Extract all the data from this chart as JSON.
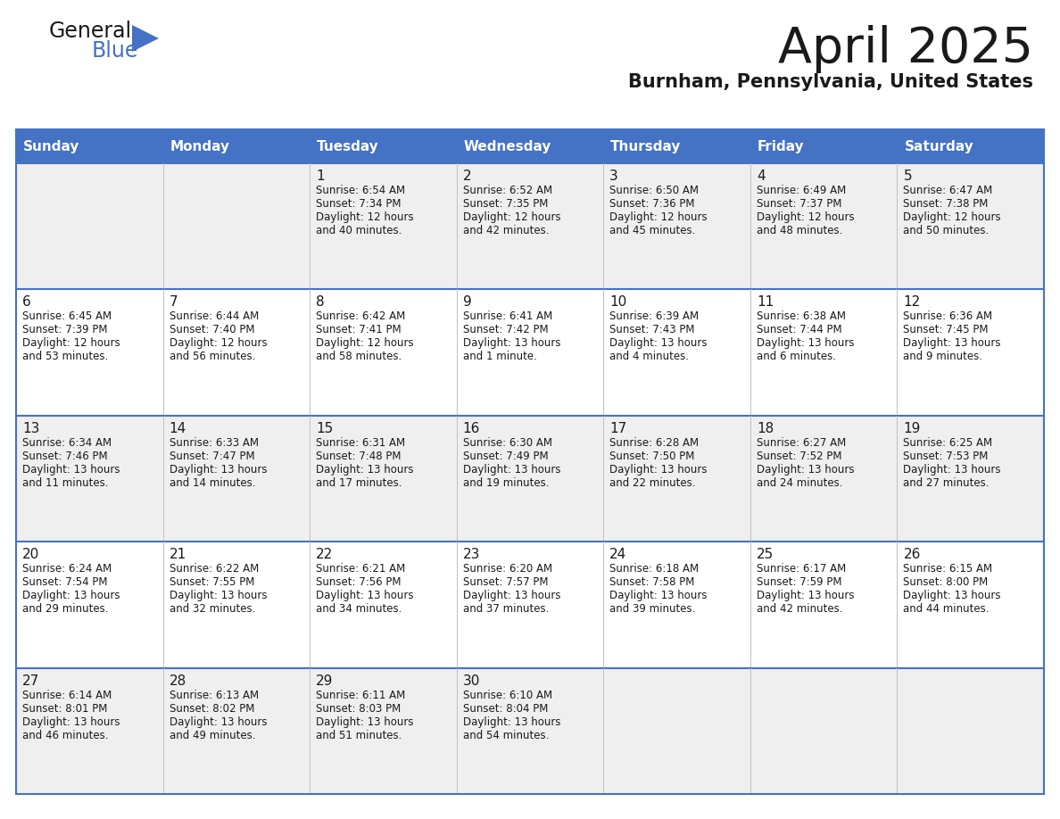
{
  "title": "April 2025",
  "subtitle": "Burnham, Pennsylvania, United States",
  "header_bg_color": "#4472C4",
  "header_text_color": "#FFFFFF",
  "odd_row_bg": "#EFEFEF",
  "even_row_bg": "#FFFFFF",
  "border_color": "#4472C4",
  "cell_border_color": "#9DB8D9",
  "title_color": "#1a1a1a",
  "subtitle_color": "#1a1a1a",
  "text_color": "#1a1a1a",
  "day_names": [
    "Sunday",
    "Monday",
    "Tuesday",
    "Wednesday",
    "Thursday",
    "Friday",
    "Saturday"
  ],
  "weeks": [
    [
      {
        "day": "",
        "sunrise": "",
        "sunset": "",
        "daylight": ""
      },
      {
        "day": "",
        "sunrise": "",
        "sunset": "",
        "daylight": ""
      },
      {
        "day": "1",
        "sunrise": "Sunrise: 6:54 AM",
        "sunset": "Sunset: 7:34 PM",
        "daylight": "Daylight: 12 hours\nand 40 minutes."
      },
      {
        "day": "2",
        "sunrise": "Sunrise: 6:52 AM",
        "sunset": "Sunset: 7:35 PM",
        "daylight": "Daylight: 12 hours\nand 42 minutes."
      },
      {
        "day": "3",
        "sunrise": "Sunrise: 6:50 AM",
        "sunset": "Sunset: 7:36 PM",
        "daylight": "Daylight: 12 hours\nand 45 minutes."
      },
      {
        "day": "4",
        "sunrise": "Sunrise: 6:49 AM",
        "sunset": "Sunset: 7:37 PM",
        "daylight": "Daylight: 12 hours\nand 48 minutes."
      },
      {
        "day": "5",
        "sunrise": "Sunrise: 6:47 AM",
        "sunset": "Sunset: 7:38 PM",
        "daylight": "Daylight: 12 hours\nand 50 minutes."
      }
    ],
    [
      {
        "day": "6",
        "sunrise": "Sunrise: 6:45 AM",
        "sunset": "Sunset: 7:39 PM",
        "daylight": "Daylight: 12 hours\nand 53 minutes."
      },
      {
        "day": "7",
        "sunrise": "Sunrise: 6:44 AM",
        "sunset": "Sunset: 7:40 PM",
        "daylight": "Daylight: 12 hours\nand 56 minutes."
      },
      {
        "day": "8",
        "sunrise": "Sunrise: 6:42 AM",
        "sunset": "Sunset: 7:41 PM",
        "daylight": "Daylight: 12 hours\nand 58 minutes."
      },
      {
        "day": "9",
        "sunrise": "Sunrise: 6:41 AM",
        "sunset": "Sunset: 7:42 PM",
        "daylight": "Daylight: 13 hours\nand 1 minute."
      },
      {
        "day": "10",
        "sunrise": "Sunrise: 6:39 AM",
        "sunset": "Sunset: 7:43 PM",
        "daylight": "Daylight: 13 hours\nand 4 minutes."
      },
      {
        "day": "11",
        "sunrise": "Sunrise: 6:38 AM",
        "sunset": "Sunset: 7:44 PM",
        "daylight": "Daylight: 13 hours\nand 6 minutes."
      },
      {
        "day": "12",
        "sunrise": "Sunrise: 6:36 AM",
        "sunset": "Sunset: 7:45 PM",
        "daylight": "Daylight: 13 hours\nand 9 minutes."
      }
    ],
    [
      {
        "day": "13",
        "sunrise": "Sunrise: 6:34 AM",
        "sunset": "Sunset: 7:46 PM",
        "daylight": "Daylight: 13 hours\nand 11 minutes."
      },
      {
        "day": "14",
        "sunrise": "Sunrise: 6:33 AM",
        "sunset": "Sunset: 7:47 PM",
        "daylight": "Daylight: 13 hours\nand 14 minutes."
      },
      {
        "day": "15",
        "sunrise": "Sunrise: 6:31 AM",
        "sunset": "Sunset: 7:48 PM",
        "daylight": "Daylight: 13 hours\nand 17 minutes."
      },
      {
        "day": "16",
        "sunrise": "Sunrise: 6:30 AM",
        "sunset": "Sunset: 7:49 PM",
        "daylight": "Daylight: 13 hours\nand 19 minutes."
      },
      {
        "day": "17",
        "sunrise": "Sunrise: 6:28 AM",
        "sunset": "Sunset: 7:50 PM",
        "daylight": "Daylight: 13 hours\nand 22 minutes."
      },
      {
        "day": "18",
        "sunrise": "Sunrise: 6:27 AM",
        "sunset": "Sunset: 7:52 PM",
        "daylight": "Daylight: 13 hours\nand 24 minutes."
      },
      {
        "day": "19",
        "sunrise": "Sunrise: 6:25 AM",
        "sunset": "Sunset: 7:53 PM",
        "daylight": "Daylight: 13 hours\nand 27 minutes."
      }
    ],
    [
      {
        "day": "20",
        "sunrise": "Sunrise: 6:24 AM",
        "sunset": "Sunset: 7:54 PM",
        "daylight": "Daylight: 13 hours\nand 29 minutes."
      },
      {
        "day": "21",
        "sunrise": "Sunrise: 6:22 AM",
        "sunset": "Sunset: 7:55 PM",
        "daylight": "Daylight: 13 hours\nand 32 minutes."
      },
      {
        "day": "22",
        "sunrise": "Sunrise: 6:21 AM",
        "sunset": "Sunset: 7:56 PM",
        "daylight": "Daylight: 13 hours\nand 34 minutes."
      },
      {
        "day": "23",
        "sunrise": "Sunrise: 6:20 AM",
        "sunset": "Sunset: 7:57 PM",
        "daylight": "Daylight: 13 hours\nand 37 minutes."
      },
      {
        "day": "24",
        "sunrise": "Sunrise: 6:18 AM",
        "sunset": "Sunset: 7:58 PM",
        "daylight": "Daylight: 13 hours\nand 39 minutes."
      },
      {
        "day": "25",
        "sunrise": "Sunrise: 6:17 AM",
        "sunset": "Sunset: 7:59 PM",
        "daylight": "Daylight: 13 hours\nand 42 minutes."
      },
      {
        "day": "26",
        "sunrise": "Sunrise: 6:15 AM",
        "sunset": "Sunset: 8:00 PM",
        "daylight": "Daylight: 13 hours\nand 44 minutes."
      }
    ],
    [
      {
        "day": "27",
        "sunrise": "Sunrise: 6:14 AM",
        "sunset": "Sunset: 8:01 PM",
        "daylight": "Daylight: 13 hours\nand 46 minutes."
      },
      {
        "day": "28",
        "sunrise": "Sunrise: 6:13 AM",
        "sunset": "Sunset: 8:02 PM",
        "daylight": "Daylight: 13 hours\nand 49 minutes."
      },
      {
        "day": "29",
        "sunrise": "Sunrise: 6:11 AM",
        "sunset": "Sunset: 8:03 PM",
        "daylight": "Daylight: 13 hours\nand 51 minutes."
      },
      {
        "day": "30",
        "sunrise": "Sunrise: 6:10 AM",
        "sunset": "Sunset: 8:04 PM",
        "daylight": "Daylight: 13 hours\nand 54 minutes."
      },
      {
        "day": "",
        "sunrise": "",
        "sunset": "",
        "daylight": ""
      },
      {
        "day": "",
        "sunrise": "",
        "sunset": "",
        "daylight": ""
      },
      {
        "day": "",
        "sunrise": "",
        "sunset": "",
        "daylight": ""
      }
    ]
  ]
}
